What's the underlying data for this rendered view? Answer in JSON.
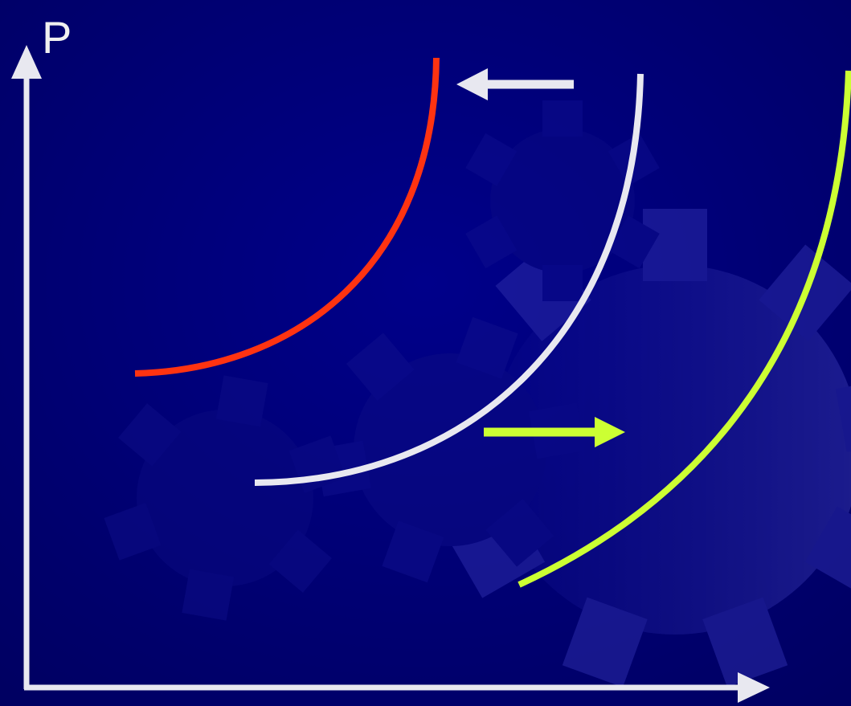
{
  "axes": {
    "y_label": "P"
  },
  "colors": {
    "background_top": "#000080",
    "background_bottom": "#000055",
    "gear": "#1a1aa0",
    "axis": "#e8e8f0",
    "curve_left": "#ff3311",
    "curve_middle": "#e8e8f0",
    "curve_right": "#ccff33",
    "arrow_left": "#e8e8f0",
    "arrow_right": "#ccff33"
  },
  "curves": [
    {
      "id": "shifted-left",
      "color_key": "curve_left"
    },
    {
      "id": "original",
      "color_key": "curve_middle"
    },
    {
      "id": "shifted-right",
      "color_key": "curve_right"
    }
  ],
  "shift_arrows": [
    {
      "id": "shift-left",
      "direction": "left"
    },
    {
      "id": "shift-right",
      "direction": "right"
    }
  ]
}
